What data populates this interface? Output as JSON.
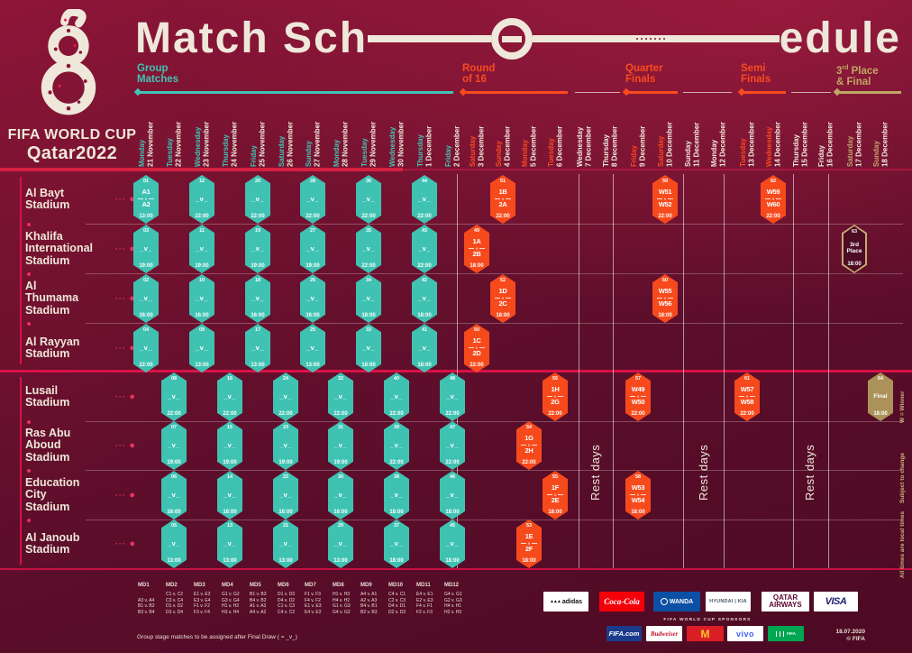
{
  "title": {
    "left": "Match Sch",
    "right": "edule"
  },
  "logo": {
    "wordmark_line1": "FIFA WORLD CUP",
    "wordmark_line2": "Qatar2022"
  },
  "theme": {
    "background_maroon": "#5d0e2b",
    "cream": "#efe8da",
    "teal": "#41c3b3",
    "orange": "#fb4a1e",
    "gold": "#c0a766",
    "red_accent": "#d81247"
  },
  "phases": [
    {
      "id": "group",
      "lines": [
        "Group",
        "Matches"
      ],
      "tone": "teal"
    },
    {
      "id": "r16",
      "lines": [
        "Round",
        "of 16"
      ],
      "tone": "orange"
    },
    {
      "id": "qf",
      "lines": [
        "Quarter",
        "Finals"
      ],
      "tone": "orange"
    },
    {
      "id": "sf",
      "lines": [
        "Semi",
        "Finals"
      ],
      "tone": "orange"
    },
    {
      "id": "final",
      "lines": [
        {
          "pre": "3",
          "sup": "rd",
          "post": " Place"
        },
        "& Final"
      ],
      "tone": "gold"
    }
  ],
  "calendar": [
    {
      "weekday": "Monday",
      "date": "21 November",
      "tone": "teal"
    },
    {
      "weekday": "Tuesday",
      "date": "22 November",
      "tone": "teal"
    },
    {
      "weekday": "Wednesday",
      "date": "23 November",
      "tone": "teal"
    },
    {
      "weekday": "Thursday",
      "date": "24 November",
      "tone": "teal"
    },
    {
      "weekday": "Friday",
      "date": "25 November",
      "tone": "teal"
    },
    {
      "weekday": "Saturday",
      "date": "26 November",
      "tone": "teal"
    },
    {
      "weekday": "Sunday",
      "date": "27 November",
      "tone": "teal"
    },
    {
      "weekday": "Monday",
      "date": "28 November",
      "tone": "teal"
    },
    {
      "weekday": "Tuesday",
      "date": "29 November",
      "tone": "teal"
    },
    {
      "weekday": "Wednesday",
      "date": "30 November",
      "tone": "teal"
    },
    {
      "weekday": "Thursday",
      "date": "1 December",
      "tone": "teal"
    },
    {
      "weekday": "Friday",
      "date": "2 December",
      "tone": "teal"
    },
    {
      "weekday": "Saturday",
      "date": "3 December",
      "tone": "orange"
    },
    {
      "weekday": "Sunday",
      "date": "4 December",
      "tone": "orange"
    },
    {
      "weekday": "Monday",
      "date": "5 December",
      "tone": "orange"
    },
    {
      "weekday": "Tuesday",
      "date": "6 December",
      "tone": "orange"
    },
    {
      "weekday": "Wednesday",
      "date": "7 December",
      "tone": "rest"
    },
    {
      "weekday": "Thursday",
      "date": "8 December",
      "tone": "rest"
    },
    {
      "weekday": "Friday",
      "date": "9 December",
      "tone": "orange"
    },
    {
      "weekday": "Saturday",
      "date": "10 December",
      "tone": "orange"
    },
    {
      "weekday": "Sunday",
      "date": "11 December",
      "tone": "rest"
    },
    {
      "weekday": "Monday",
      "date": "12 December",
      "tone": "rest"
    },
    {
      "weekday": "Tuesday",
      "date": "13 December",
      "tone": "orange"
    },
    {
      "weekday": "Wednesday",
      "date": "14 December",
      "tone": "orange"
    },
    {
      "weekday": "Thursday",
      "date": "15 December",
      "tone": "rest"
    },
    {
      "weekday": "Friday",
      "date": "16 December",
      "tone": "rest"
    },
    {
      "weekday": "Saturday",
      "date": "17 December",
      "tone": "gold"
    },
    {
      "weekday": "Sunday",
      "date": "18 December",
      "tone": "gold"
    }
  ],
  "stadiums": [
    [
      "Al Bayt",
      "Stadium"
    ],
    [
      "Khalifa",
      "International",
      "Stadium"
    ],
    [
      "Al",
      "Thumama",
      "Stadium"
    ],
    [
      "Al Rayyan",
      "Stadium"
    ],
    [
      "Lusail",
      "Stadium"
    ],
    [
      "Ras Abu",
      "Aboud",
      "Stadium"
    ],
    [
      "Education",
      "City",
      "Stadium"
    ],
    [
      "Al Janoub",
      "Stadium"
    ]
  ],
  "rest_zones": [
    {
      "label": "Rest days"
    },
    {
      "label": "Rest days"
    },
    {
      "label": "Rest days"
    }
  ],
  "side_notes": [
    "W = Winner",
    "Subject to change",
    "All times are local times"
  ],
  "matches": [
    {
      "row": 0,
      "day": 0,
      "num": "01",
      "type": "group",
      "home": "A1",
      "away": "A2",
      "time": "13:00"
    },
    {
      "row": 0,
      "day": 2,
      "num": "12",
      "type": "group",
      "time": "22:00"
    },
    {
      "row": 0,
      "day": 4,
      "num": "20",
      "type": "group",
      "time": "22:00"
    },
    {
      "row": 0,
      "day": 6,
      "num": "28",
      "type": "group",
      "time": "22:00"
    },
    {
      "row": 0,
      "day": 8,
      "num": "36",
      "type": "group",
      "time": "22:00"
    },
    {
      "row": 0,
      "day": 10,
      "num": "44",
      "type": "group",
      "time": "22:00"
    },
    {
      "row": 1,
      "day": 0,
      "num": "03",
      "type": "group",
      "time": "19:00"
    },
    {
      "row": 1,
      "day": 2,
      "num": "11",
      "type": "group",
      "time": "19:00"
    },
    {
      "row": 1,
      "day": 4,
      "num": "19",
      "type": "group",
      "time": "19:00"
    },
    {
      "row": 1,
      "day": 6,
      "num": "27",
      "type": "group",
      "time": "19:00"
    },
    {
      "row": 1,
      "day": 8,
      "num": "35",
      "type": "group",
      "time": "22:00"
    },
    {
      "row": 1,
      "day": 10,
      "num": "43",
      "type": "group",
      "time": "22:00"
    },
    {
      "row": 2,
      "day": 0,
      "num": "02",
      "type": "group",
      "time": "16:00"
    },
    {
      "row": 2,
      "day": 2,
      "num": "10",
      "type": "group",
      "time": "16:00"
    },
    {
      "row": 2,
      "day": 4,
      "num": "18",
      "type": "group",
      "time": "16:00"
    },
    {
      "row": 2,
      "day": 6,
      "num": "26",
      "type": "group",
      "time": "16:00"
    },
    {
      "row": 2,
      "day": 8,
      "num": "34",
      "type": "group",
      "time": "18:00"
    },
    {
      "row": 2,
      "day": 10,
      "num": "42",
      "type": "group",
      "time": "18:00"
    },
    {
      "row": 3,
      "day": 0,
      "num": "04",
      "type": "group",
      "time": "22:00"
    },
    {
      "row": 3,
      "day": 2,
      "num": "09",
      "type": "group",
      "time": "13:00"
    },
    {
      "row": 3,
      "day": 4,
      "num": "17",
      "type": "group",
      "time": "13:00"
    },
    {
      "row": 3,
      "day": 6,
      "num": "25",
      "type": "group",
      "time": "13:00"
    },
    {
      "row": 3,
      "day": 8,
      "num": "33",
      "type": "group",
      "time": "18:00"
    },
    {
      "row": 3,
      "day": 10,
      "num": "41",
      "type": "group",
      "time": "18:00"
    },
    {
      "row": 4,
      "day": 1,
      "num": "08",
      "type": "group",
      "time": "22:00"
    },
    {
      "row": 4,
      "day": 3,
      "num": "16",
      "type": "group",
      "time": "22:00"
    },
    {
      "row": 4,
      "day": 5,
      "num": "24",
      "type": "group",
      "time": "22:00"
    },
    {
      "row": 4,
      "day": 7,
      "num": "32",
      "type": "group",
      "time": "22:00"
    },
    {
      "row": 4,
      "day": 9,
      "num": "40",
      "type": "group",
      "time": "22:00"
    },
    {
      "row": 4,
      "day": 11,
      "num": "48",
      "type": "group",
      "time": "22:00"
    },
    {
      "row": 5,
      "day": 1,
      "num": "07",
      "type": "group",
      "time": "19:00"
    },
    {
      "row": 5,
      "day": 3,
      "num": "15",
      "type": "group",
      "time": "19:00"
    },
    {
      "row": 5,
      "day": 5,
      "num": "23",
      "type": "group",
      "time": "19:00"
    },
    {
      "row": 5,
      "day": 7,
      "num": "31",
      "type": "group",
      "time": "19:00"
    },
    {
      "row": 5,
      "day": 9,
      "num": "39",
      "type": "group",
      "time": "22:00"
    },
    {
      "row": 5,
      "day": 11,
      "num": "47",
      "type": "group",
      "time": "22:00"
    },
    {
      "row": 6,
      "day": 1,
      "num": "06",
      "type": "group",
      "time": "16:00"
    },
    {
      "row": 6,
      "day": 3,
      "num": "14",
      "type": "group",
      "time": "16:00"
    },
    {
      "row": 6,
      "day": 5,
      "num": "22",
      "type": "group",
      "time": "16:00"
    },
    {
      "row": 6,
      "day": 7,
      "num": "30",
      "type": "group",
      "time": "16:00"
    },
    {
      "row": 6,
      "day": 9,
      "num": "38",
      "type": "group",
      "time": "18:00"
    },
    {
      "row": 6,
      "day": 11,
      "num": "46",
      "type": "group",
      "time": "18:00"
    },
    {
      "row": 7,
      "day": 1,
      "num": "05",
      "type": "group",
      "time": "13:00"
    },
    {
      "row": 7,
      "day": 3,
      "num": "13",
      "type": "group",
      "time": "13:00"
    },
    {
      "row": 7,
      "day": 5,
      "num": "21",
      "type": "group",
      "time": "13:00"
    },
    {
      "row": 7,
      "day": 7,
      "num": "29",
      "type": "group",
      "time": "13:00"
    },
    {
      "row": 7,
      "day": 9,
      "num": "37",
      "type": "group",
      "time": "18:00"
    },
    {
      "row": 7,
      "day": 11,
      "num": "45",
      "type": "group",
      "time": "18:00"
    },
    {
      "row": 1,
      "day": 12,
      "num": "49",
      "type": "r16",
      "home": "1A",
      "away": "2B",
      "time": "18:00"
    },
    {
      "row": 3,
      "day": 12,
      "num": "50",
      "type": "r16",
      "home": "1C",
      "away": "2D",
      "time": "22:00"
    },
    {
      "row": 0,
      "day": 13,
      "num": "51",
      "type": "r16",
      "home": "1B",
      "away": "2A",
      "time": "22:00"
    },
    {
      "row": 2,
      "day": 13,
      "num": "52",
      "type": "r16",
      "home": "1D",
      "away": "2C",
      "time": "18:00"
    },
    {
      "row": 7,
      "day": 14,
      "num": "53",
      "type": "r16",
      "home": "1E",
      "away": "2F",
      "time": "18:00"
    },
    {
      "row": 5,
      "day": 14,
      "num": "54",
      "type": "r16",
      "home": "1G",
      "away": "2H",
      "time": "22:00"
    },
    {
      "row": 6,
      "day": 15,
      "num": "55",
      "type": "r16",
      "home": "1F",
      "away": "2E",
      "time": "18:00"
    },
    {
      "row": 4,
      "day": 15,
      "num": "56",
      "type": "r16",
      "home": "1H",
      "away": "2G",
      "time": "22:00"
    },
    {
      "row": 4,
      "day": 18,
      "num": "57",
      "type": "qf",
      "home": "W49",
      "away": "W50",
      "time": "22:00"
    },
    {
      "row": 6,
      "day": 18,
      "num": "58",
      "type": "qf",
      "home": "W53",
      "away": "W54",
      "time": "18:00"
    },
    {
      "row": 0,
      "day": 19,
      "num": "59",
      "type": "qf",
      "home": "W51",
      "away": "W52",
      "time": "22:00"
    },
    {
      "row": 2,
      "day": 19,
      "num": "60",
      "type": "qf",
      "home": "W55",
      "away": "W56",
      "time": "18:00"
    },
    {
      "row": 4,
      "day": 22,
      "num": "61",
      "type": "sf",
      "home": "W57",
      "away": "W58",
      "time": "22:00"
    },
    {
      "row": 0,
      "day": 23,
      "num": "62",
      "type": "sf",
      "home": "W59",
      "away": "W60",
      "time": "22:00"
    },
    {
      "row": 1,
      "day": 26,
      "num": "63",
      "type": "third",
      "label_lines": [
        "3rd",
        "Place"
      ],
      "time": "18:00"
    },
    {
      "row": 4,
      "day": 27,
      "num": "64",
      "type": "final",
      "label_lines": [
        "Final"
      ],
      "time": "18:00"
    }
  ],
  "placeholder": "_v_",
  "legend": {
    "matchdays": [
      {
        "label": "MD1",
        "fixtures": [
          "",
          "A3 v. A4",
          "B1 v. B2",
          "B3 v. B4"
        ]
      },
      {
        "label": "MD2",
        "fixtures": [
          "C1 v. C2",
          "C3 v. C4",
          "D1 v. D2",
          "D3 v. D4"
        ]
      },
      {
        "label": "MD3",
        "fixtures": [
          "E1 v. E2",
          "E3 v. E4",
          "F1 v. F2",
          "F3 v. F4"
        ]
      },
      {
        "label": "MD4",
        "fixtures": [
          "G1 v. G2",
          "G3 v. G4",
          "H1 v. H2",
          "H3 v. H4"
        ]
      },
      {
        "label": "MD5",
        "fixtures": [
          "B1 v. B3",
          "B4 v. B2",
          "A1 v. A3",
          "A4 v. A2"
        ]
      },
      {
        "label": "MD6",
        "fixtures": [
          "D1 v. D3",
          "D4 v. D2",
          "C1 v. C3",
          "C4 v. C2"
        ]
      },
      {
        "label": "MD7",
        "fixtures": [
          "F1 v. F3",
          "F4 v. F2",
          "E1 v. E3",
          "E4 v. E2"
        ]
      },
      {
        "label": "MD8",
        "fixtures": [
          "H1 v. H3",
          "H4 v. H2",
          "G1 v. G3",
          "G4 v. G2"
        ]
      },
      {
        "label": "MD9",
        "fixtures": [
          "A4 v. A1",
          "A2 v. A3",
          "B4 v. B1",
          "B2 v. B3"
        ]
      },
      {
        "label": "MD10",
        "fixtures": [
          "C4 v. C1",
          "C2 v. C3",
          "D4 v. D1",
          "D2 v. D3"
        ]
      },
      {
        "label": "MD11",
        "fixtures": [
          "E4 v. E1",
          "E2 v. E3",
          "F4 v. F1",
          "F2 v. F3"
        ]
      },
      {
        "label": "MD12",
        "fixtures": [
          "G4 v. G1",
          "G2 v. G3",
          "H4 v. H1",
          "H2 v. H3"
        ]
      }
    ],
    "note": "Group stage matches to be assigned after Final Draw ( = _v_)"
  },
  "sponsors": {
    "label": "FIFA WORLD CUP SPONSORS",
    "partners": [
      {
        "id": "adidas",
        "label": "adidas"
      },
      {
        "id": "coca-cola",
        "label": "Coca-Cola"
      },
      {
        "id": "wanda",
        "label": "万达 WANDA",
        "latin": "WANDA"
      },
      {
        "id": "hyundai-kia",
        "label": "HYUNDAI | KIA"
      },
      {
        "id": "qatar-airways",
        "label": "QATAR AIRWAYS"
      },
      {
        "id": "visa",
        "label": "VISA"
      }
    ],
    "world_cup_sponsors": [
      {
        "id": "fifa-com",
        "label": "FIFA.com"
      },
      {
        "id": "budweiser",
        "label": "Budweiser"
      },
      {
        "id": "mcdonalds",
        "label": "M"
      },
      {
        "id": "vivo",
        "label": "vivo"
      },
      {
        "id": "green-arabic",
        "label": "FIFA"
      }
    ],
    "footer": {
      "date": "18.07.2020",
      "copyright": "© FIFA"
    }
  }
}
